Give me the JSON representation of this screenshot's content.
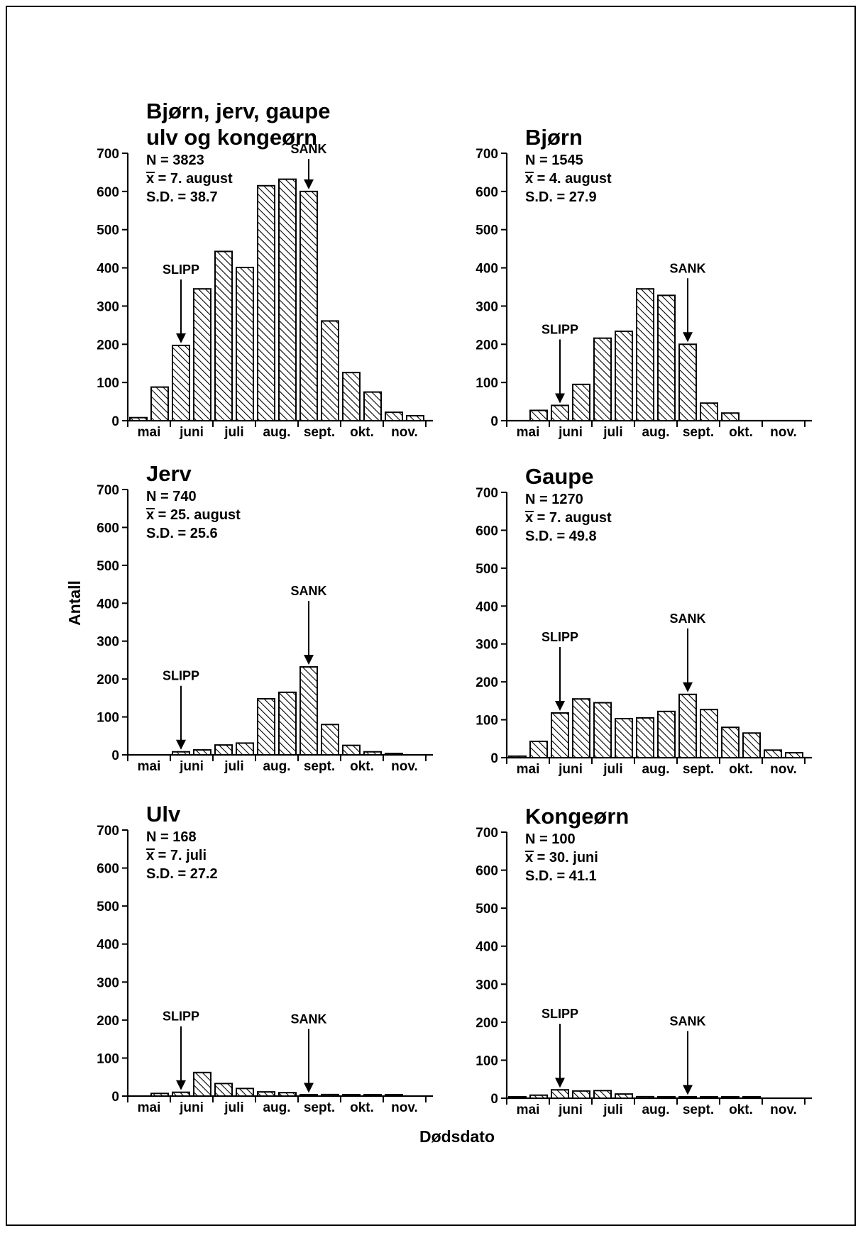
{
  "figure": {
    "ylabel": "Antall",
    "xlabel": "Dødsdato"
  },
  "chart_data": [
    {
      "type": "bar",
      "title_lines": [
        "Bjørn, jerv, gaupe",
        "ulv og kongeørn"
      ],
      "stats": [
        "N = 3823",
        "x = 7. august",
        "S.D. = 38.7"
      ],
      "months": [
        "mai",
        "juni",
        "juli",
        "aug.",
        "sept.",
        "okt.",
        "nov."
      ],
      "values": [
        8,
        88,
        197,
        345,
        443,
        401,
        615,
        632,
        600,
        261,
        126,
        75,
        22,
        13
      ],
      "ylim": [
        0,
        700
      ],
      "yticks": [
        "0",
        "100",
        "200",
        "300",
        "400",
        "500",
        "600",
        "700"
      ],
      "annotations": [
        {
          "label": "SLIPP",
          "bin": 2
        },
        {
          "label": "SANK",
          "bin": 8
        }
      ]
    },
    {
      "type": "bar",
      "title_lines": [
        "Bjørn"
      ],
      "stats": [
        "N = 1545",
        "x = 4. august",
        "S.D. = 27.9"
      ],
      "months": [
        "mai",
        "juni",
        "juli",
        "aug.",
        "sept.",
        "okt.",
        "nov."
      ],
      "values": [
        0,
        27,
        40,
        95,
        216,
        234,
        345,
        328,
        200,
        46,
        20,
        0,
        0,
        0
      ],
      "ylim": [
        0,
        700
      ],
      "yticks": [
        "0",
        "100",
        "200",
        "300",
        "400",
        "500",
        "600",
        "700"
      ],
      "annotations": [
        {
          "label": "SLIPP",
          "bin": 2
        },
        {
          "label": "SANK",
          "bin": 8
        }
      ]
    },
    {
      "type": "bar",
      "title_lines": [
        "Jerv"
      ],
      "stats": [
        "N = 740",
        "x = 25. august",
        "S.D. = 25.6"
      ],
      "months": [
        "mai",
        "juni",
        "juli",
        "aug.",
        "sept.",
        "okt.",
        "nov."
      ],
      "values": [
        0,
        0,
        8,
        13,
        26,
        31,
        148,
        165,
        232,
        80,
        25,
        8,
        2,
        0
      ],
      "ylim": [
        0,
        700
      ],
      "yticks": [
        "0",
        "100",
        "200",
        "300",
        "400",
        "500",
        "600",
        "700"
      ],
      "annotations": [
        {
          "label": "SLIPP",
          "bin": 2
        },
        {
          "label": "SANK",
          "bin": 8
        }
      ]
    },
    {
      "type": "bar",
      "title_lines": [
        "Gaupe"
      ],
      "stats": [
        "N = 1270",
        "x = 7. august",
        "S.D. = 49.8"
      ],
      "months": [
        "mai",
        "juni",
        "juli",
        "aug.",
        "sept.",
        "okt.",
        "nov."
      ],
      "values": [
        4,
        43,
        118,
        155,
        145,
        103,
        105,
        122,
        167,
        127,
        80,
        65,
        20,
        13
      ],
      "ylim": [
        0,
        700
      ],
      "yticks": [
        "0",
        "100",
        "200",
        "300",
        "400",
        "500",
        "600",
        "700"
      ],
      "annotations": [
        {
          "label": "SLIPP",
          "bin": 2
        },
        {
          "label": "SANK",
          "bin": 8
        }
      ]
    },
    {
      "type": "bar",
      "title_lines": [
        "Ulv"
      ],
      "stats": [
        "N = 168",
        "x = 7. juli",
        "S.D. = 27.2"
      ],
      "months": [
        "mai",
        "juni",
        "juli",
        "aug.",
        "sept.",
        "okt.",
        "nov."
      ],
      "values": [
        0,
        7,
        10,
        62,
        33,
        20,
        11,
        9,
        3,
        4,
        1,
        1,
        1,
        0
      ],
      "ylim": [
        0,
        700
      ],
      "yticks": [
        "0",
        "100",
        "200",
        "300",
        "400",
        "500",
        "600",
        "700"
      ],
      "annotations": [
        {
          "label": "SLIPP",
          "bin": 2
        },
        {
          "label": "SANK",
          "bin": 8
        }
      ]
    },
    {
      "type": "bar",
      "title_lines": [
        "Kongeørn"
      ],
      "stats": [
        "N = 100",
        "x = 30. juni",
        "S.D. = 41.1"
      ],
      "months": [
        "mai",
        "juni",
        "juli",
        "aug.",
        "sept.",
        "okt.",
        "nov."
      ],
      "values": [
        2,
        8,
        22,
        19,
        20,
        11,
        4,
        3,
        3,
        1,
        1,
        1,
        0,
        0
      ],
      "ylim": [
        0,
        700
      ],
      "yticks": [
        "0",
        "100",
        "200",
        "300",
        "400",
        "500",
        "600",
        "700"
      ],
      "annotations": [
        {
          "label": "SLIPP",
          "bin": 2
        },
        {
          "label": "SANK",
          "bin": 8
        }
      ]
    }
  ]
}
